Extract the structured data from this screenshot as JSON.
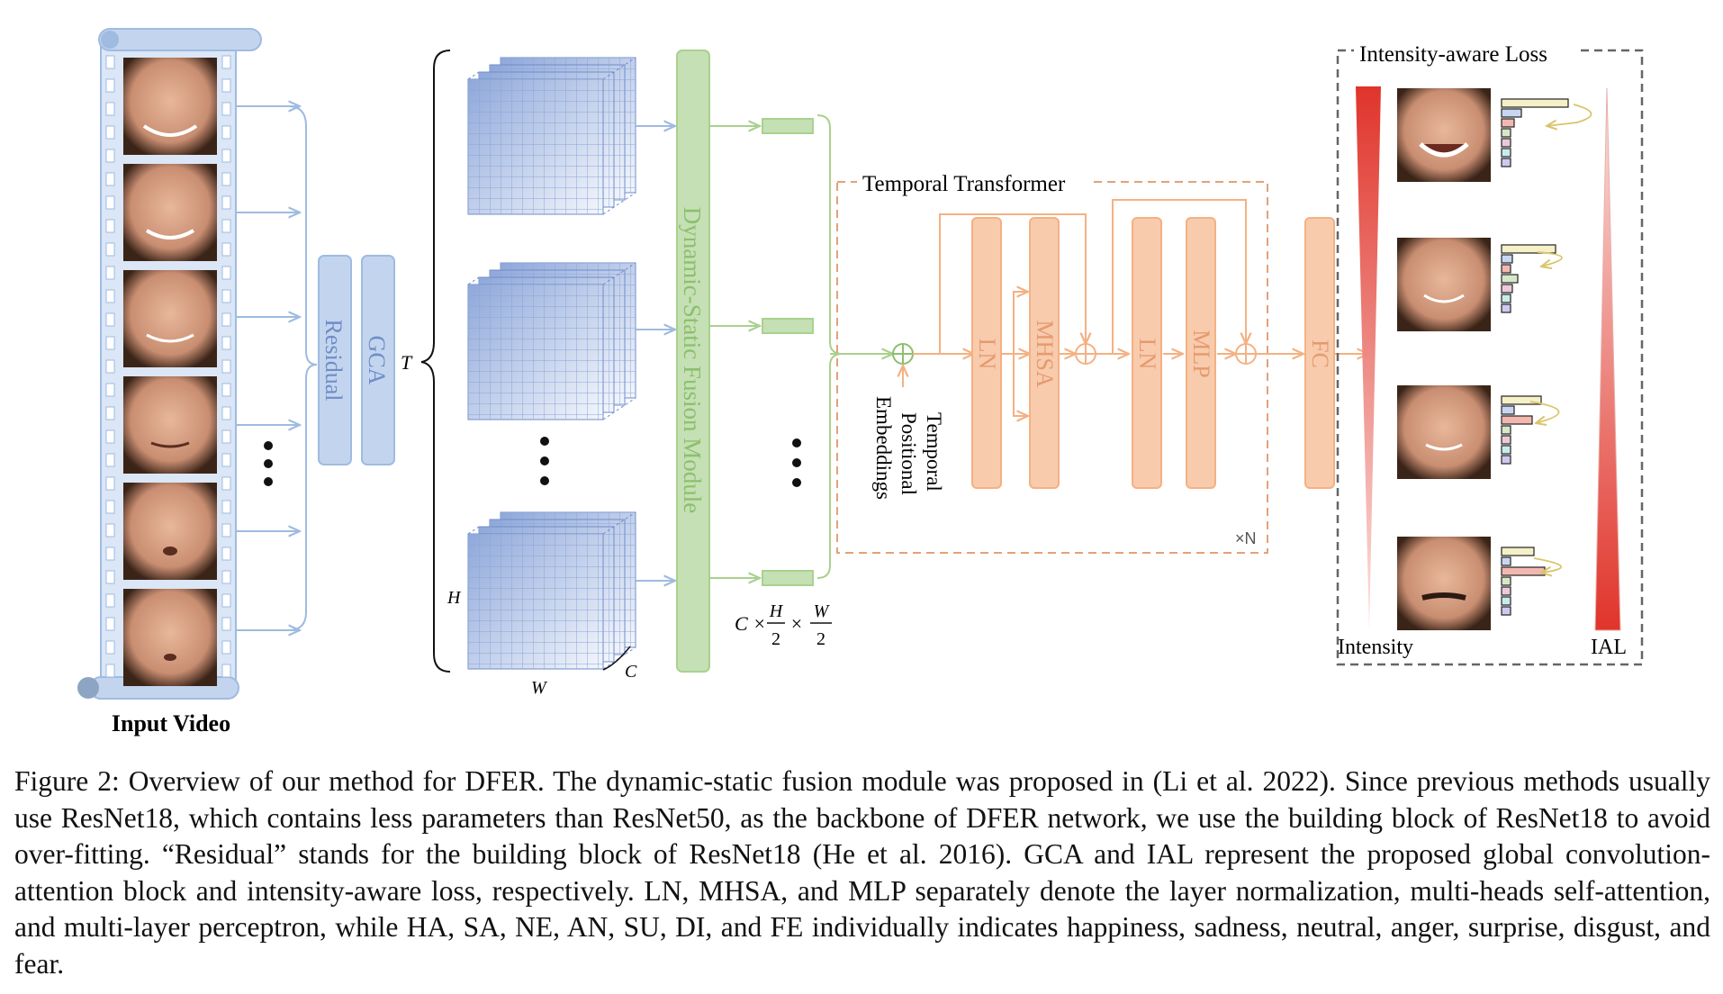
{
  "figure": {
    "input_label": "Input Video",
    "residual_label": "Residual",
    "gca_label": "GCA",
    "t_label": "T",
    "h_label": "H",
    "w_label": "W",
    "c_label": "C",
    "dsf_label": "Dynamic-Static Fusion Module",
    "dim_c": "C ×",
    "dim_h": "H",
    "dim_two_a": "2",
    "dim_times": "×",
    "dim_w": "W",
    "dim_two_b": "2",
    "tpe_line1": "Temporal",
    "tpe_line2": "Positional",
    "tpe_line3": "Embeddings",
    "transformer_label": "Temporal Transformer",
    "ln_label": "LN",
    "mhsa_label": "MHSA",
    "mlp_label": "MLP",
    "fc_label": "FC",
    "xn_label": "×N",
    "ial_box_title": "Intensity-aware Loss",
    "intensity_label": "Intensity",
    "ial_label": "IAL",
    "colors": {
      "blue": "#9fbbe0",
      "blue_fill": "#c3d5ee",
      "green": "#a9d18e",
      "green_fill": "#c5e0b4",
      "orange": "#f4b183",
      "orange_fill": "#f8cbad",
      "red": "#e0342b",
      "gray_dash": "#666666"
    }
  },
  "caption": {
    "text": "Figure 2: Overview of our method for DFER. The dynamic-static fusion module was proposed in (Li et al. 2022). Since previous methods usually use ResNet18, which contains less parameters than ResNet50, as the backbone of DFER network, we use the building block of ResNet18 to avoid over-fitting. “Residual” stands for the building block of ResNet18 (He et al. 2016). GCA and IAL represent the proposed global convolution-attention block and intensity-aware loss, respectively. LN, MHSA, and MLP separately denote the layer normalization, multi-heads self-attention, and multi-layer perceptron, while HA, SA, NE, AN, SU, DI, and FE individually indicates happiness, sadness, neutral, anger, surprise, disgust, and fear."
  }
}
